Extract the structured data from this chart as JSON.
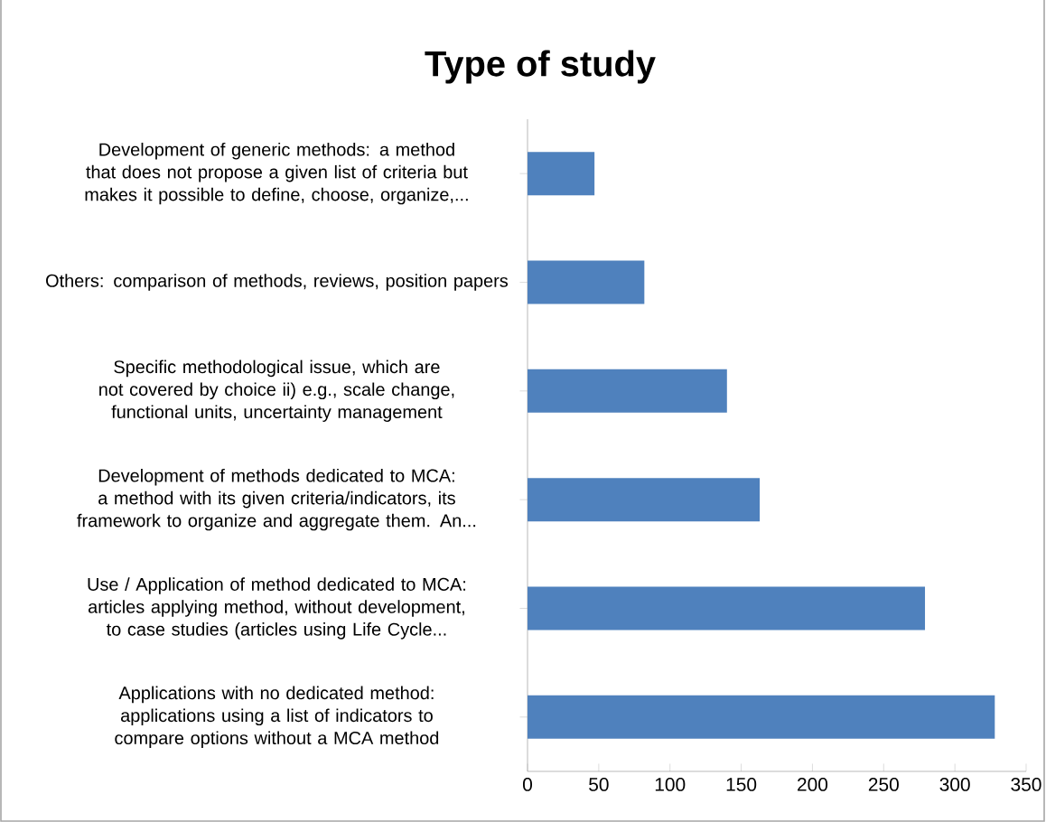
{
  "chart_data": {
    "type": "bar",
    "orientation": "horizontal",
    "title": "Type of study",
    "categories": [
      "Development of generic methods: a method that does not propose a given list of criteria but makes it possible to define, choose, organize,...",
      "Others: comparison of methods, reviews, position papers",
      "Specific methodological issue, which are not covered by choice ii) e.g., scale change, functional units, uncertainty management",
      "Development of methods dedicated to MCA: a method with its given criteria/indicators, its framework to organize and aggregate them. An...",
      "Use / Application of method dedicated to MCA: articles applying method, without development, to case studies (articles using Life Cycle...",
      "Applications with no dedicated method: applications using a list of indicators to compare options without a MCA method"
    ],
    "values": [
      47,
      82,
      140,
      163,
      279,
      328
    ],
    "color": "#4f81bd",
    "xlim": [
      0,
      350
    ],
    "xticks": [
      0,
      50,
      100,
      150,
      200,
      250,
      300,
      350
    ],
    "grid": false
  }
}
